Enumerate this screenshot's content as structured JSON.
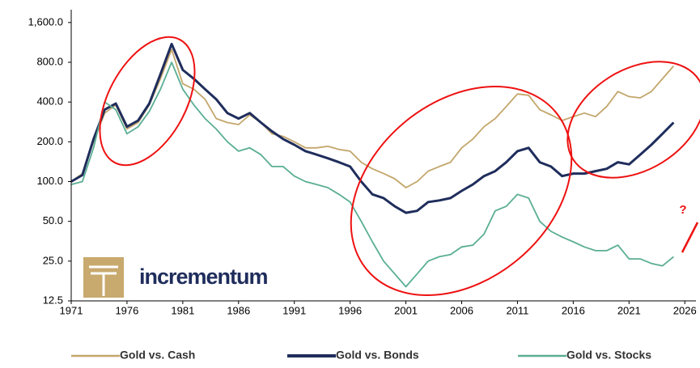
{
  "chart_data": {
    "type": "line",
    "x": [
      1971,
      1972,
      1973,
      1974,
      1975,
      1976,
      1977,
      1978,
      1979,
      1980,
      1981,
      1982,
      1983,
      1984,
      1985,
      1986,
      1987,
      1988,
      1989,
      1990,
      1991,
      1992,
      1993,
      1994,
      1995,
      1996,
      1997,
      1998,
      1999,
      2000,
      2001,
      2002,
      2003,
      2004,
      2005,
      2006,
      2007,
      2008,
      2009,
      2010,
      2011,
      2012,
      2013,
      2014,
      2015,
      2016,
      2017,
      2018,
      2019,
      2020,
      2021,
      2022,
      2023,
      2024,
      2025
    ],
    "series": [
      {
        "name": "Gold vs. Cash",
        "color": "#c3a66b",
        "values": [
          100,
          115,
          200,
          330,
          380,
          250,
          280,
          380,
          600,
          1000,
          550,
          500,
          420,
          300,
          280,
          270,
          320,
          280,
          230,
          220,
          200,
          180,
          180,
          185,
          175,
          170,
          140,
          125,
          115,
          105,
          90,
          100,
          120,
          130,
          140,
          180,
          210,
          260,
          300,
          370,
          460,
          450,
          350,
          320,
          290,
          310,
          330,
          310,
          370,
          480,
          440,
          430,
          480,
          600,
          750
        ]
      },
      {
        "name": "Gold vs. Bonds",
        "color": "#1f2d5c",
        "values": [
          100,
          112,
          210,
          350,
          390,
          260,
          290,
          390,
          650,
          1100,
          700,
          600,
          500,
          420,
          330,
          300,
          330,
          280,
          240,
          210,
          190,
          170,
          160,
          150,
          140,
          130,
          100,
          80,
          75,
          65,
          58,
          60,
          70,
          72,
          75,
          85,
          95,
          110,
          120,
          140,
          170,
          180,
          140,
          130,
          110,
          115,
          115,
          120,
          125,
          140,
          135,
          160,
          190,
          230,
          280
        ]
      },
      {
        "name": "Gold vs. Stocks",
        "color": "#5aae94",
        "values": [
          95,
          100,
          180,
          400,
          350,
          230,
          260,
          340,
          500,
          800,
          500,
          380,
          300,
          250,
          200,
          170,
          180,
          160,
          130,
          130,
          110,
          100,
          95,
          90,
          80,
          70,
          50,
          35,
          25,
          20,
          16,
          20,
          25,
          27,
          28,
          32,
          33,
          40,
          60,
          65,
          80,
          75,
          50,
          42,
          38,
          35,
          32,
          30,
          30,
          33,
          26,
          26,
          24,
          23,
          27
        ]
      }
    ],
    "xlim": [
      1971,
      2027
    ],
    "xticks": [
      1971,
      1976,
      1981,
      1986,
      1991,
      1996,
      2001,
      2006,
      2011,
      2016,
      2021,
      2026
    ],
    "ylim": [
      12.5,
      2000
    ],
    "yticks": [
      12.5,
      {
        "value": 25,
        "label": "25.0"
      },
      {
        "value": 50,
        "label": "50.0"
      },
      {
        "value": 100,
        "label": "100.0"
      },
      {
        "value": 200,
        "label": "200.0"
      },
      {
        "value": 400,
        "label": "400.0"
      },
      {
        "value": 800,
        "label": "800.0"
      },
      {
        "value": 1600,
        "label": "1,600.0"
      }
    ],
    "log_y": true,
    "grid": false,
    "legend": "bottom",
    "annotations": [
      "?"
    ],
    "logo_text": "incrementum"
  }
}
